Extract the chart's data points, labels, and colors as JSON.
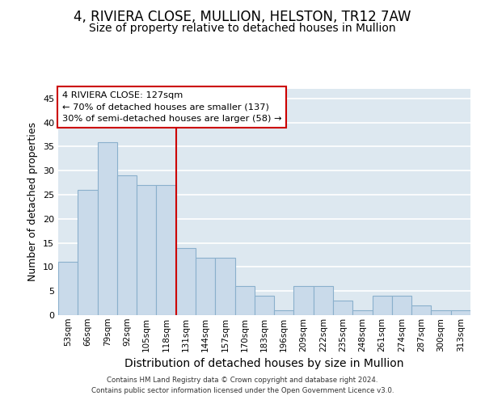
{
  "title": "4, RIVIERA CLOSE, MULLION, HELSTON, TR12 7AW",
  "subtitle": "Size of property relative to detached houses in Mullion",
  "xlabel": "Distribution of detached houses by size in Mullion",
  "ylabel": "Number of detached properties",
  "bar_labels": [
    "53sqm",
    "66sqm",
    "79sqm",
    "92sqm",
    "105sqm",
    "118sqm",
    "131sqm",
    "144sqm",
    "157sqm",
    "170sqm",
    "183sqm",
    "196sqm",
    "209sqm",
    "222sqm",
    "235sqm",
    "248sqm",
    "261sqm",
    "274sqm",
    "287sqm",
    "300sqm",
    "313sqm"
  ],
  "bar_heights": [
    11,
    26,
    36,
    29,
    27,
    27,
    14,
    12,
    12,
    6,
    4,
    1,
    6,
    6,
    3,
    1,
    4,
    4,
    2,
    1,
    1
  ],
  "bar_color": "#c9daea",
  "bar_edge_color": "#8ab0cc",
  "vline_x_idx": 6,
  "vline_color": "#cc0000",
  "annotation_text": "4 RIVIERA CLOSE: 127sqm\n← 70% of detached houses are smaller (137)\n30% of semi-detached houses are larger (58) →",
  "annotation_box_color": "white",
  "annotation_box_edge": "#cc0000",
  "ylim": [
    0,
    47
  ],
  "yticks": [
    0,
    5,
    10,
    15,
    20,
    25,
    30,
    35,
    40,
    45
  ],
  "background_color": "#dde8f0",
  "grid_color": "white",
  "title_fontsize": 12,
  "subtitle_fontsize": 10,
  "axis_label_fontsize": 9,
  "tick_fontsize": 7.5,
  "footer_text": "Contains HM Land Registry data © Crown copyright and database right 2024.\nContains public sector information licensed under the Open Government Licence v3.0."
}
